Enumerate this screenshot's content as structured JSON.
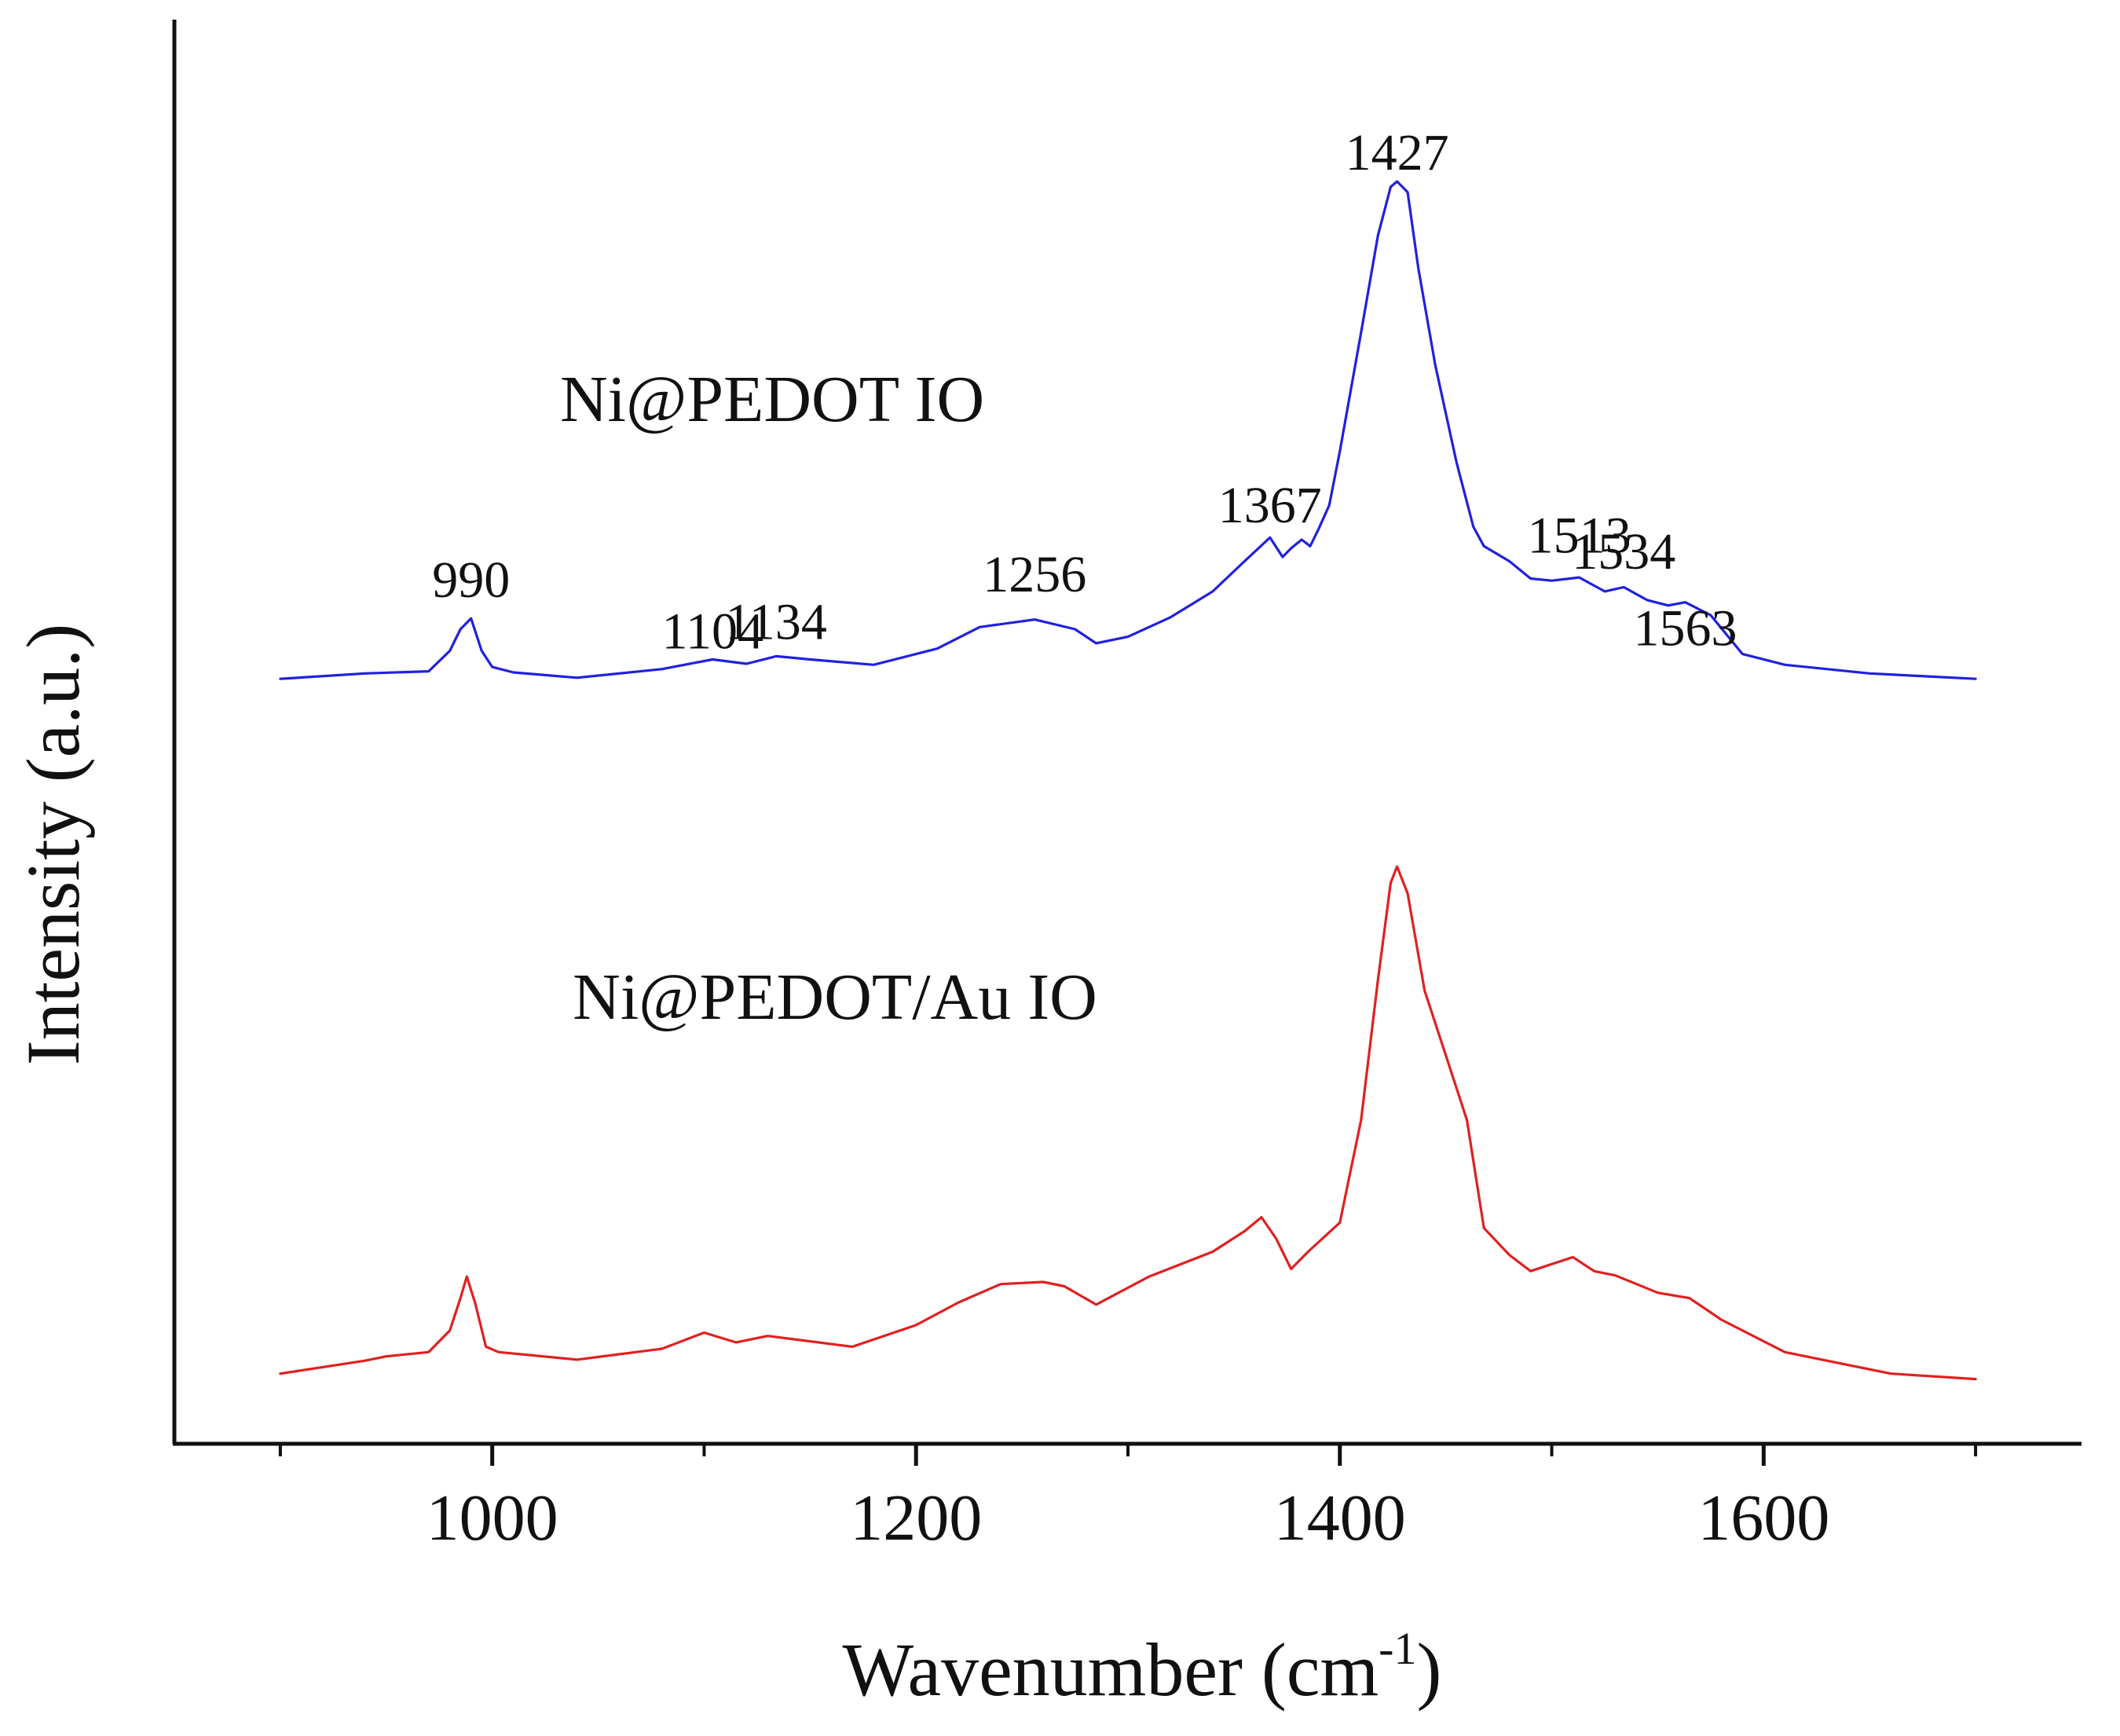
{
  "chart_data": {
    "type": "line",
    "title": "",
    "xlabel": "Wavenumber (cm",
    "xlabel_sup": "-1",
    "xlabel_close": ")",
    "ylabel": "Intensity (a.u.)",
    "xlim": [
      850,
      1750
    ],
    "ylim": [
      0,
      1.32
    ],
    "x_ticks": [
      1000,
      1200,
      1400,
      1600
    ],
    "x_tick_labels": [
      "1000",
      "1200",
      "1400",
      "1600"
    ],
    "y_ticks_shown": false,
    "grid": false,
    "series": [
      {
        "name": "Ni@PEDOT IO",
        "label": "Ni@PEDOT IO",
        "color": "#2020e0",
        "label_anchor": [
          1032,
          0.948
        ],
        "x": [
          900,
          940,
          970,
          980,
          985,
          990,
          995,
          1000,
          1010,
          1040,
          1080,
          1104,
          1120,
          1134,
          1150,
          1180,
          1210,
          1230,
          1256,
          1275,
          1285,
          1300,
          1320,
          1340,
          1355,
          1367,
          1373,
          1377,
          1382,
          1386,
          1390,
          1395,
          1400,
          1410,
          1418,
          1424,
          1427,
          1432,
          1437,
          1445,
          1455,
          1463,
          1468,
          1480,
          1490,
          1500,
          1513,
          1525,
          1534,
          1545,
          1555,
          1563,
          1575,
          1590,
          1610,
          1650,
          1700
        ],
        "y": [
          0.709,
          0.714,
          0.716,
          0.735,
          0.755,
          0.765,
          0.735,
          0.72,
          0.715,
          0.71,
          0.718,
          0.727,
          0.723,
          0.73,
          0.727,
          0.722,
          0.737,
          0.757,
          0.764,
          0.755,
          0.742,
          0.748,
          0.766,
          0.79,
          0.818,
          0.84,
          0.822,
          0.83,
          0.838,
          0.832,
          0.848,
          0.87,
          0.92,
          1.03,
          1.12,
          1.165,
          1.17,
          1.16,
          1.09,
          1.0,
          0.91,
          0.85,
          0.832,
          0.818,
          0.802,
          0.8,
          0.803,
          0.79,
          0.794,
          0.782,
          0.777,
          0.78,
          0.768,
          0.732,
          0.722,
          0.714,
          0.709
        ]
      },
      {
        "name": "Ni@PEDOT/Au IO",
        "label": "Ni@PEDOT/Au IO",
        "color": "#e02020",
        "label_anchor": [
          1038,
          0.394
        ],
        "x": [
          900,
          940,
          950,
          970,
          980,
          985,
          988,
          992,
          997,
          1003,
          1040,
          1080,
          1100,
          1115,
          1130,
          1170,
          1200,
          1220,
          1240,
          1260,
          1270,
          1285,
          1310,
          1340,
          1355,
          1363,
          1370,
          1377,
          1385,
          1400,
          1410,
          1418,
          1424,
          1427,
          1432,
          1440,
          1450,
          1460,
          1468,
          1480,
          1490,
          1510,
          1520,
          1530,
          1540,
          1550,
          1565,
          1580,
          1610,
          1660,
          1700
        ],
        "y": [
          0.065,
          0.077,
          0.081,
          0.085,
          0.105,
          0.135,
          0.155,
          0.13,
          0.09,
          0.085,
          0.078,
          0.088,
          0.103,
          0.094,
          0.1,
          0.09,
          0.11,
          0.131,
          0.148,
          0.15,
          0.146,
          0.129,
          0.155,
          0.178,
          0.197,
          0.21,
          0.19,
          0.162,
          0.178,
          0.205,
          0.3,
          0.43,
          0.52,
          0.535,
          0.51,
          0.42,
          0.36,
          0.3,
          0.2,
          0.175,
          0.16,
          0.173,
          0.16,
          0.156,
          0.148,
          0.14,
          0.135,
          0.115,
          0.085,
          0.065,
          0.06
        ]
      }
    ],
    "annotations": [
      {
        "text": "990",
        "x": 990,
        "y": 0.785
      },
      {
        "text": "1104",
        "x": 1104,
        "y": 0.737
      },
      {
        "text": "1134",
        "x": 1134,
        "y": 0.746
      },
      {
        "text": "1256",
        "x": 1256,
        "y": 0.79
      },
      {
        "text": "1367",
        "x": 1367,
        "y": 0.854
      },
      {
        "text": "1427",
        "x": 1427,
        "y": 1.181
      },
      {
        "text": "1513",
        "x": 1513,
        "y": 0.826
      },
      {
        "text": "1534",
        "x": 1534,
        "y": 0.811
      },
      {
        "text": "1563",
        "x": 1563,
        "y": 0.74
      }
    ]
  }
}
